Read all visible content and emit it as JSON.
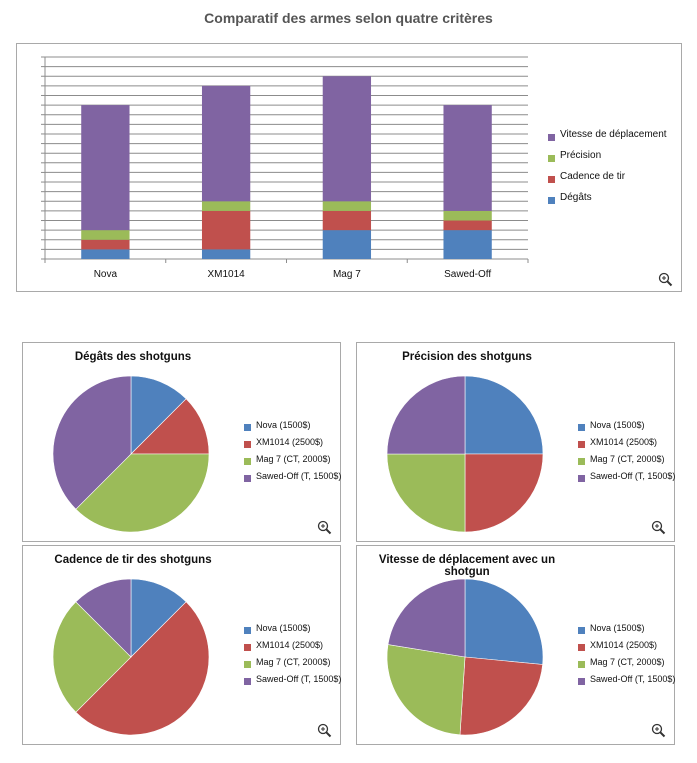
{
  "page": {
    "title": "Comparatif des armes selon quatre critères"
  },
  "chart_data": [
    {
      "type": "bar",
      "stacked": true,
      "title": "",
      "categories": [
        "Nova",
        "XM1014",
        "Mag 7",
        "Sawed-Off"
      ],
      "series": [
        {
          "name": "Dégâts",
          "color": "#4F81BD",
          "values": [
            1,
            1,
            3,
            3
          ]
        },
        {
          "name": "Cadence de tir",
          "color": "#C0504D",
          "values": [
            1,
            4,
            2,
            1
          ]
        },
        {
          "name": "Précision",
          "color": "#9BBB59",
          "values": [
            1,
            1,
            1,
            1
          ]
        },
        {
          "name": "Vitesse de déplacement",
          "color": "#8064A2",
          "values": [
            13,
            12,
            13,
            11
          ]
        }
      ],
      "ylim": [
        0,
        21
      ],
      "ytick_step": 1,
      "grid": true,
      "legend": "right"
    },
    {
      "type": "pie",
      "title": "Dégâts des shotguns",
      "labels": [
        "Nova (1500$)",
        "XM1014 (2500$)",
        "Mag 7 (CT, 2000$)",
        "Sawed-Off (T, 1500$)"
      ],
      "colors": [
        "#4F81BD",
        "#C0504D",
        "#9BBB59",
        "#8064A2"
      ],
      "values": [
        1,
        1,
        3,
        3
      ],
      "legend": "right"
    },
    {
      "type": "pie",
      "title": "Précision des shotguns",
      "labels": [
        "Nova (1500$)",
        "XM1014 (2500$)",
        "Mag 7 (CT, 2000$)",
        "Sawed-Off (T, 1500$)"
      ],
      "colors": [
        "#4F81BD",
        "#C0504D",
        "#9BBB59",
        "#8064A2"
      ],
      "values": [
        1,
        1,
        1,
        1
      ],
      "legend": "right"
    },
    {
      "type": "pie",
      "title": "Cadence de tir des shotguns",
      "labels": [
        "Nova (1500$)",
        "XM1014 (2500$)",
        "Mag 7 (CT, 2000$)",
        "Sawed-Off (T, 1500$)"
      ],
      "colors": [
        "#4F81BD",
        "#C0504D",
        "#9BBB59",
        "#8064A2"
      ],
      "values": [
        1,
        4,
        2,
        1
      ],
      "legend": "right"
    },
    {
      "type": "pie",
      "title": "Vitesse de déplacement avec un shotgun",
      "labels": [
        "Nova (1500$)",
        "XM1014 (2500$)",
        "Mag 7 (CT, 2000$)",
        "Sawed-Off (T, 1500$)"
      ],
      "colors": [
        "#4F81BD",
        "#C0504D",
        "#9BBB59",
        "#8064A2"
      ],
      "values": [
        13,
        12,
        13,
        11
      ],
      "legend": "right"
    }
  ]
}
